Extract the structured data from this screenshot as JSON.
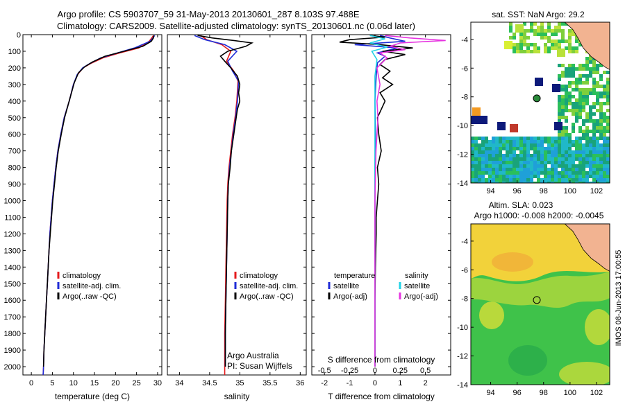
{
  "figure": {
    "title_line1": "Argo profile: CS 5903707_59 31-May-2013 20130601_287 8.103S 97.488E",
    "title_line2": "Climatology: CARS2009. Satellite-adjusted climatology: synTS_20130601.nc (0.06d later)",
    "side_label": "IMOS 08-Jun-2013 17:00:55"
  },
  "colors": {
    "climatology": "#e41a1c",
    "satellite": "#1f2bd6",
    "argo": "#000000",
    "sal_satellite": "#22d3e6",
    "sal_argo": "#e633e0",
    "land": "#f2b391"
  },
  "chart_data": [
    {
      "id": "temperature",
      "type": "line",
      "xlabel": "temperature (deg C)",
      "xlim": [
        -2,
        31
      ],
      "xticks": [
        0,
        5,
        10,
        15,
        20,
        25,
        30
      ],
      "ylim": [
        0,
        2050
      ],
      "yticks": [
        0,
        100,
        200,
        300,
        400,
        500,
        600,
        700,
        800,
        900,
        1000,
        1100,
        1200,
        1300,
        1400,
        1500,
        1600,
        1700,
        1800,
        1900,
        2000
      ],
      "legend": [
        "climatology",
        "satellite-adj. clim.",
        "Argo(..raw -QC)"
      ],
      "series": [
        {
          "name": "climatology",
          "color": "#e41a1c",
          "points": [
            [
              29.0,
              5
            ],
            [
              28.6,
              20
            ],
            [
              28.0,
              40
            ],
            [
              25.5,
              80
            ],
            [
              21,
              110
            ],
            [
              17,
              140
            ],
            [
              14,
              175
            ],
            [
              12.3,
              200
            ],
            [
              11,
              240
            ],
            [
              10,
              300
            ],
            [
              9,
              400
            ],
            [
              7.8,
              500
            ],
            [
              7,
              600
            ],
            [
              6.3,
              700
            ],
            [
              5.8,
              800
            ],
            [
              5.4,
              900
            ],
            [
              5,
              1000
            ],
            [
              4.7,
              1100
            ],
            [
              4.4,
              1200
            ],
            [
              4.2,
              1300
            ],
            [
              4,
              1400
            ],
            [
              3.8,
              1500
            ],
            [
              3.6,
              1600
            ],
            [
              3.4,
              1700
            ],
            [
              3.2,
              1800
            ],
            [
              3,
              1900
            ],
            [
              2.9,
              2000
            ],
            [
              2.8,
              2050
            ]
          ]
        },
        {
          "name": "satellite-adj. clim.",
          "color": "#1f2bd6",
          "points": [
            [
              29.3,
              5
            ],
            [
              28.9,
              20
            ],
            [
              28.2,
              40
            ],
            [
              24.5,
              80
            ],
            [
              20.5,
              110
            ],
            [
              16.5,
              140
            ],
            [
              13.8,
              175
            ],
            [
              12.2,
              200
            ],
            [
              10.9,
              240
            ],
            [
              10,
              300
            ],
            [
              9,
              400
            ],
            [
              7.8,
              500
            ],
            [
              7,
              600
            ],
            [
              6.3,
              700
            ],
            [
              5.8,
              800
            ],
            [
              5.4,
              900
            ],
            [
              5,
              1000
            ],
            [
              4.7,
              1100
            ],
            [
              4.4,
              1200
            ],
            [
              4.2,
              1300
            ],
            [
              4,
              1400
            ],
            [
              3.8,
              1500
            ],
            [
              3.6,
              1600
            ],
            [
              3.4,
              1700
            ],
            [
              3.2,
              1800
            ],
            [
              3,
              1900
            ],
            [
              2.9,
              2000
            ],
            [
              2.8,
              2050
            ]
          ]
        },
        {
          "name": "Argo(..raw -QC)",
          "color": "#000000",
          "points": [
            [
              29.1,
              5
            ],
            [
              29.0,
              20
            ],
            [
              28.5,
              40
            ],
            [
              26.5,
              70
            ],
            [
              22,
              100
            ],
            [
              17.5,
              130
            ],
            [
              14.5,
              165
            ],
            [
              12.6,
              195
            ],
            [
              11.2,
              230
            ],
            [
              10.2,
              290
            ],
            [
              9.1,
              390
            ],
            [
              7.9,
              500
            ],
            [
              7.1,
              600
            ],
            [
              6.4,
              700
            ],
            [
              5.9,
              800
            ],
            [
              5.5,
              900
            ],
            [
              5.1,
              1000
            ],
            [
              4.8,
              1100
            ],
            [
              4.5,
              1200
            ],
            [
              4.2,
              1300
            ],
            [
              4,
              1400
            ],
            [
              3.8,
              1500
            ],
            [
              3.6,
              1600
            ],
            [
              3.4,
              1700
            ],
            [
              3.2,
              1800
            ],
            [
              3,
              1900
            ],
            [
              2.9,
              2000
            ]
          ]
        }
      ]
    },
    {
      "id": "salinity",
      "type": "line",
      "xlabel": "salinity",
      "xlim": [
        33.8,
        36.1
      ],
      "xticks": [
        34,
        34.5,
        35,
        35.5,
        36
      ],
      "ylim": [
        0,
        2050
      ],
      "legend": [
        "climatology",
        "satellite-adj. clim.",
        "Argo(..raw -QC)"
      ],
      "annotation_line1": "Argo Australia",
      "annotation_line2": "PI: Susan Wijffels",
      "series": [
        {
          "name": "climatology",
          "color": "#e41a1c",
          "points": [
            [
              34.35,
              5
            ],
            [
              34.45,
              30
            ],
            [
              34.7,
              60
            ],
            [
              34.85,
              100
            ],
            [
              34.78,
              160
            ],
            [
              34.9,
              220
            ],
            [
              34.97,
              280
            ],
            [
              34.95,
              400
            ],
            [
              34.92,
              500
            ],
            [
              34.88,
              600
            ],
            [
              34.85,
              700
            ],
            [
              34.82,
              800
            ],
            [
              34.8,
              900
            ],
            [
              34.79,
              1000
            ],
            [
              34.78,
              1200
            ],
            [
              34.77,
              1400
            ],
            [
              34.76,
              1600
            ],
            [
              34.75,
              1800
            ],
            [
              34.75,
              2000
            ],
            [
              34.75,
              2050
            ]
          ]
        },
        {
          "name": "satellite-adj. clim.",
          "color": "#1f2bd6",
          "points": [
            [
              34.25,
              5
            ],
            [
              34.42,
              30
            ],
            [
              34.75,
              60
            ],
            [
              34.95,
              100
            ],
            [
              34.8,
              160
            ],
            [
              34.88,
              220
            ],
            [
              34.98,
              280
            ],
            [
              34.96,
              400
            ],
            [
              34.93,
              500
            ],
            [
              34.89,
              600
            ],
            [
              34.86,
              700
            ],
            [
              34.83,
              800
            ],
            [
              34.81,
              900
            ],
            [
              34.8,
              1000
            ],
            [
              34.79,
              1200
            ],
            [
              34.78,
              1400
            ],
            [
              34.77,
              1600
            ],
            [
              34.76,
              1800
            ],
            [
              34.76,
              2000
            ]
          ]
        },
        {
          "name": "Argo(..raw -QC)",
          "color": "#000000",
          "points": [
            [
              34.3,
              5
            ],
            [
              34.55,
              20
            ],
            [
              34.9,
              35
            ],
            [
              35.2,
              50
            ],
            [
              35.1,
              70
            ],
            [
              34.8,
              100
            ],
            [
              34.68,
              130
            ],
            [
              34.75,
              160
            ],
            [
              34.85,
              200
            ],
            [
              34.96,
              250
            ],
            [
              35.0,
              300
            ],
            [
              34.98,
              350
            ],
            [
              35.0,
              400
            ],
            [
              34.96,
              450
            ],
            [
              34.94,
              500
            ],
            [
              34.9,
              600
            ],
            [
              34.86,
              700
            ],
            [
              34.84,
              800
            ],
            [
              34.81,
              900
            ],
            [
              34.8,
              1000
            ],
            [
              34.79,
              1200
            ],
            [
              34.78,
              1400
            ],
            [
              34.77,
              1600
            ],
            [
              34.76,
              1800
            ],
            [
              34.76,
              2000
            ]
          ]
        }
      ]
    },
    {
      "id": "difference",
      "type": "line",
      "xlabel": "T difference from climatology",
      "xlim": [
        -2.5,
        3.0
      ],
      "xticks": [
        -2,
        -1,
        0,
        1,
        2
      ],
      "top_xlabel": "S difference from climatology",
      "top_xtick_labels": [
        "-0.5",
        "-0.25",
        "0",
        "0.25",
        "0.5"
      ],
      "top_xtick_values": [
        -0.5,
        -0.25,
        0,
        0.25,
        0.5
      ],
      "top_xlim": [
        -0.625,
        0.75
      ],
      "ylim": [
        0,
        2050
      ],
      "legend_temp_title": "temperature",
      "legend_sal_title": "salinity",
      "legend_temp": [
        "satellite",
        "Argo(-adj)"
      ],
      "legend_sal": [
        "satellite",
        "Argo(-adj)"
      ],
      "series": [
        {
          "name": "T satellite",
          "color": "#1f2bd6",
          "points": [
            [
              0.2,
              5
            ],
            [
              0.6,
              20
            ],
            [
              1.2,
              40
            ],
            [
              -0.8,
              60
            ],
            [
              0.9,
              80
            ],
            [
              0.1,
              110
            ],
            [
              0.4,
              130
            ],
            [
              0.1,
              170
            ],
            [
              0.05,
              250
            ],
            [
              0,
              400
            ],
            [
              0.02,
              600
            ],
            [
              0,
              800
            ],
            [
              0,
              1000
            ],
            [
              0,
              1400
            ],
            [
              0,
              2000
            ]
          ]
        },
        {
          "name": "T Argo(-adj)",
          "color": "#000000",
          "points": [
            [
              -0.2,
              5
            ],
            [
              0.4,
              15
            ],
            [
              -1.0,
              30
            ],
            [
              -1.4,
              45
            ],
            [
              0.2,
              60
            ],
            [
              1.5,
              80
            ],
            [
              0.3,
              100
            ],
            [
              1.2,
              120
            ],
            [
              0.4,
              150
            ],
            [
              0.2,
              180
            ],
            [
              0.6,
              220
            ],
            [
              0.3,
              260
            ],
            [
              0.7,
              300
            ],
            [
              0.2,
              350
            ],
            [
              0.4,
              400
            ],
            [
              0.1,
              500
            ],
            [
              0.15,
              600
            ],
            [
              0.25,
              700
            ],
            [
              0.1,
              800
            ],
            [
              0.15,
              900
            ],
            [
              0.1,
              1000
            ],
            [
              0.05,
              1100
            ],
            [
              0.05,
              1200
            ],
            [
              0.02,
              1400
            ],
            [
              0,
              1600
            ],
            [
              0,
              1800
            ],
            [
              0,
              2000
            ]
          ]
        },
        {
          "name": "S satellite",
          "color": "#22d3e6",
          "points": [
            [
              -0.05,
              5
            ],
            [
              0.1,
              25
            ],
            [
              -0.05,
              50
            ],
            [
              0.12,
              75
            ],
            [
              -0.03,
              100
            ],
            [
              0.02,
              150
            ],
            [
              0,
              250
            ],
            [
              0,
              500
            ],
            [
              0,
              1000
            ],
            [
              0,
              2000
            ]
          ]
        },
        {
          "name": "S Argo(-adj)",
          "color": "#e633e0",
          "points": [
            [
              0.1,
              5
            ],
            [
              0.35,
              20
            ],
            [
              0.7,
              35
            ],
            [
              0.25,
              50
            ],
            [
              0.15,
              70
            ],
            [
              0.3,
              90
            ],
            [
              0.05,
              110
            ],
            [
              0.12,
              140
            ],
            [
              0.02,
              200
            ],
            [
              0.05,
              300
            ],
            [
              0.02,
              400
            ],
            [
              0.03,
              500
            ],
            [
              0.01,
              700
            ],
            [
              0,
              1000
            ],
            [
              0,
              1500
            ],
            [
              0,
              2000
            ]
          ]
        }
      ]
    },
    {
      "id": "sst_map",
      "type": "heatmap",
      "title": "sat. SST: NaN Argo: 29.2",
      "xticks": [
        94,
        96,
        98,
        100,
        102
      ],
      "yticks": [
        -4,
        -6,
        -8,
        -10,
        -12,
        -14
      ],
      "xlim": [
        92.5,
        103
      ],
      "ylim": [
        -14,
        -2.8
      ],
      "argo_position": [
        97.488,
        -8.103
      ]
    },
    {
      "id": "sla_map",
      "type": "heatmap",
      "title": "Altim. SLA: 0.023",
      "subtitle": "Argo h1000: -0.008 h2000: -0.0045",
      "xticks": [
        94,
        96,
        98,
        100,
        102
      ],
      "yticks": [
        -4,
        -6,
        -8,
        -10,
        -12,
        -14
      ],
      "xlim": [
        92.5,
        103
      ],
      "ylim": [
        -14,
        -2.8
      ],
      "argo_position": [
        97.488,
        -8.103
      ]
    }
  ]
}
